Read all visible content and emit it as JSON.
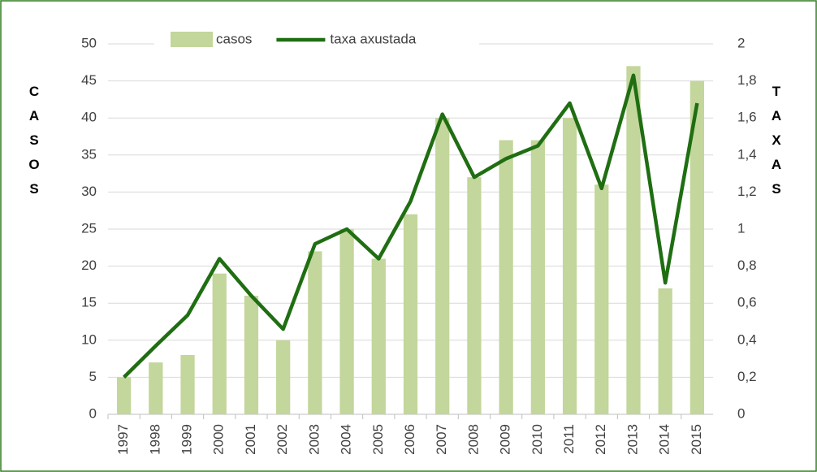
{
  "chart_data": {
    "type": "bar_line",
    "y_label": "CASOS",
    "y2_label": "TAXAS",
    "categories": [
      "1997",
      "1998",
      "1999",
      "2000",
      "2001",
      "2002",
      "2003",
      "2004",
      "2005",
      "2006",
      "2007",
      "2008",
      "2009",
      "2010",
      "2011",
      "2012",
      "2013",
      "2014",
      "2015"
    ],
    "series": [
      {
        "name": "casos",
        "type": "bar",
        "color": "#c3d69b",
        "values": [
          5,
          7,
          8,
          19,
          16,
          10,
          22,
          25,
          21,
          27,
          40,
          32,
          37,
          37,
          40,
          31,
          47,
          17,
          45
        ]
      },
      {
        "name": "taxa axustada",
        "type": "line",
        "axis": "y2",
        "color": "#1f6e12",
        "values": [
          0.2,
          0.37,
          0.535,
          0.84,
          0.64,
          0.46,
          0.92,
          1.0,
          0.84,
          1.15,
          1.62,
          1.28,
          1.38,
          1.45,
          1.68,
          1.22,
          1.83,
          0.71,
          1.68
        ]
      }
    ],
    "ylim": [
      0,
      50
    ],
    "yticks": [
      0,
      5,
      10,
      15,
      20,
      25,
      30,
      35,
      40,
      45,
      50
    ],
    "y2lim": [
      0,
      2
    ],
    "y2ticks": [
      0,
      {
        "value": 0.2,
        "label": "0,2"
      },
      {
        "value": 0.4,
        "label": "0,4"
      },
      {
        "value": 0.6,
        "label": "0,6"
      },
      {
        "value": 0.8,
        "label": "0,8"
      },
      1,
      {
        "value": 1.2,
        "label": "1,2"
      },
      {
        "value": 1.4,
        "label": "1,4"
      },
      {
        "value": 1.6,
        "label": "1,6"
      },
      {
        "value": 1.8,
        "label": "1,8"
      },
      2
    ],
    "grid": true,
    "legend": "top"
  }
}
